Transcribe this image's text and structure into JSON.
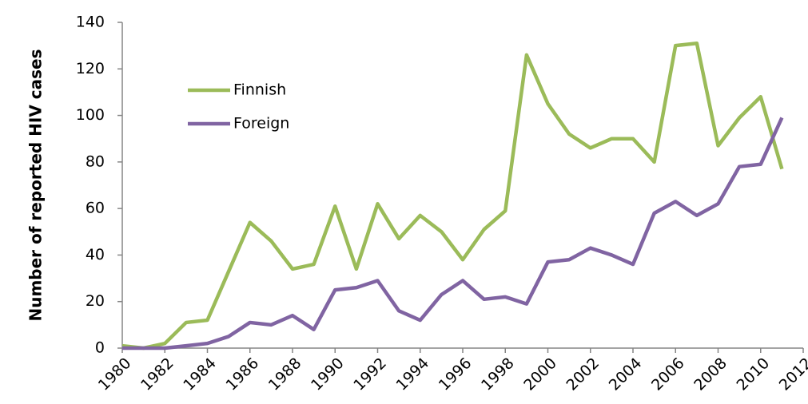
{
  "chart_data": {
    "type": "line",
    "ylabel": "Number of reported HIV cases",
    "x": [
      1980,
      1981,
      1982,
      1983,
      1984,
      1985,
      1986,
      1987,
      1988,
      1989,
      1990,
      1991,
      1992,
      1993,
      1994,
      1995,
      1996,
      1997,
      1998,
      1999,
      2000,
      2001,
      2002,
      2003,
      2004,
      2005,
      2006,
      2007,
      2008,
      2009,
      2010,
      2011
    ],
    "series": [
      {
        "name": "Finnish",
        "color": "#9bbb59",
        "values": [
          1,
          0,
          2,
          11,
          12,
          33,
          54,
          46,
          34,
          36,
          61,
          34,
          62,
          47,
          57,
          50,
          38,
          51,
          59,
          126,
          105,
          92,
          86,
          90,
          90,
          80,
          130,
          131,
          87,
          99,
          108,
          77
        ]
      },
      {
        "name": "Foreign",
        "color": "#8064a2",
        "values": [
          0,
          0,
          0,
          1,
          2,
          5,
          11,
          10,
          14,
          8,
          25,
          26,
          29,
          16,
          12,
          23,
          29,
          21,
          22,
          19,
          37,
          38,
          43,
          40,
          36,
          58,
          63,
          57,
          62,
          78,
          79,
          99
        ]
      }
    ],
    "xlim": [
      1980,
      2012
    ],
    "xticks": [
      1980,
      1982,
      1984,
      1986,
      1988,
      1990,
      1992,
      1994,
      1996,
      1998,
      2000,
      2002,
      2004,
      2006,
      2008,
      2010,
      2012
    ],
    "ylim": [
      0,
      140
    ],
    "yticks": [
      0,
      20,
      40,
      60,
      80,
      100,
      120,
      140
    ],
    "grid": false,
    "legend": "upper left"
  }
}
